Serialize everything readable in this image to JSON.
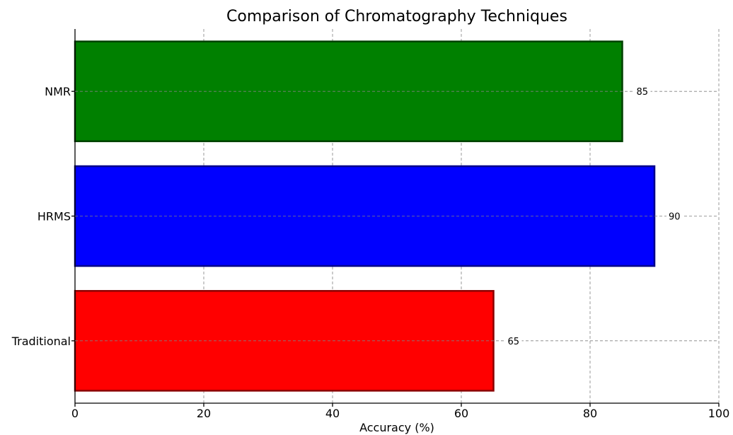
{
  "chart_data": {
    "type": "bar",
    "orientation": "horizontal",
    "title": "Comparison of Chromatography Techniques",
    "xlabel": "Accuracy (%)",
    "ylabel": "",
    "categories": [
      "Traditional",
      "HRMS",
      "NMR"
    ],
    "values": [
      65,
      90,
      85
    ],
    "colors": [
      "#ff0000",
      "#0000ff",
      "#008000"
    ],
    "edge_colors": [
      "#8b0000",
      "#00008b",
      "#004000"
    ],
    "xlim": [
      0,
      100
    ],
    "xticks": [
      0,
      20,
      40,
      60,
      80,
      100
    ],
    "grid": true,
    "data_labels": [
      "65",
      "90",
      "85"
    ]
  }
}
